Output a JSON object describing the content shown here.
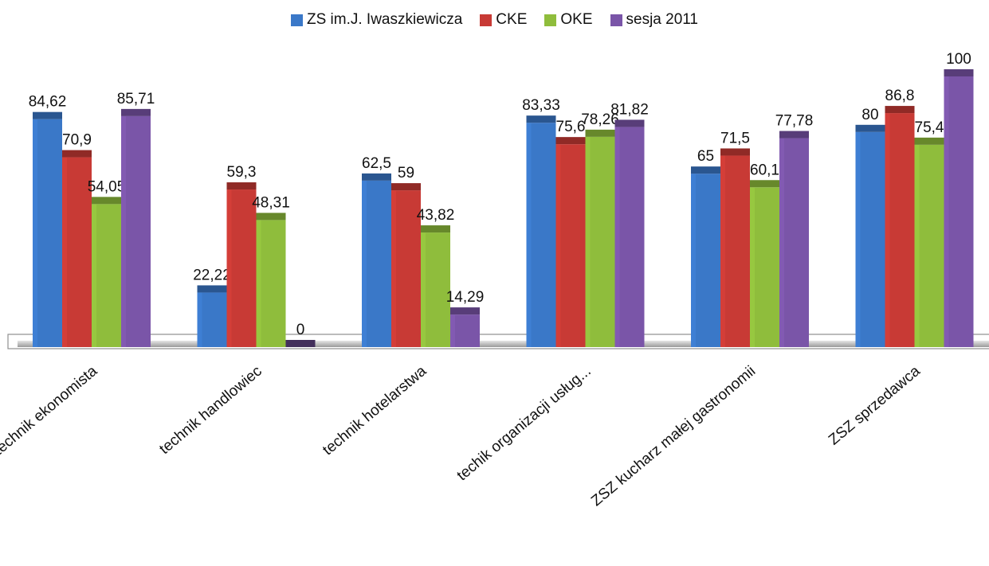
{
  "chart_data": {
    "type": "bar",
    "title": "",
    "xlabel": "",
    "ylabel": "",
    "ylim": [
      0,
      100
    ],
    "grid": false,
    "legend_position": "top",
    "categories": [
      "technik ekonomista",
      "technik handlowiec",
      "technik hotelarstwa",
      "techik organizacji usług...",
      "ZSZ kucharz małej gastronomii",
      "ZSZ sprzedawca"
    ],
    "series": [
      {
        "name": "ZS im.J. Iwaszkiewicza",
        "color": "#3a78c8",
        "values": [
          84.62,
          22.22,
          62.5,
          83.33,
          65,
          80
        ],
        "labels": [
          "84,62",
          "22,22",
          "62,5",
          "83,33",
          "65",
          "80"
        ]
      },
      {
        "name": "CKE",
        "color": "#c83a35",
        "values": [
          70.9,
          59.3,
          59,
          75.6,
          71.5,
          86.8
        ],
        "labels": [
          "70,9",
          "59,3",
          "59",
          "75,6",
          "71,5",
          "86,8"
        ]
      },
      {
        "name": "OKE",
        "color": "#8fbd3c",
        "values": [
          54.05,
          48.31,
          43.82,
          78.26,
          60.1,
          75.4
        ],
        "labels": [
          "54,05",
          "48,31",
          "43,82",
          "78,26",
          "60,1",
          "75,4"
        ]
      },
      {
        "name": "sesja 2011",
        "color": "#7a55a8",
        "values": [
          85.71,
          0,
          14.29,
          81.82,
          77.78,
          100
        ],
        "labels": [
          "85,71",
          "0",
          "14,29",
          "81,82",
          "77,78",
          "100"
        ]
      }
    ]
  }
}
